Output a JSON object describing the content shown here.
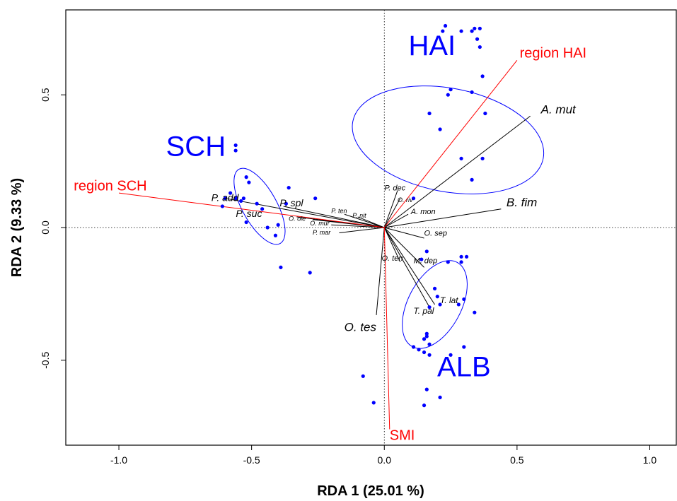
{
  "chart_data": {
    "type": "scatter",
    "title": "",
    "xlabel": "RDA 1 (25.01 %)",
    "ylabel": "RDA 2 (9.33 %)",
    "xlim": [
      -1.2,
      1.1
    ],
    "ylim": [
      -0.82,
      0.82
    ],
    "xticks": [
      -1.0,
      -0.5,
      0.0,
      0.5,
      1.0
    ],
    "xtick_labels": [
      "-1.0",
      "-0.5",
      "0.0",
      "0.5",
      "1.0"
    ],
    "yticks": [
      -0.5,
      0.0,
      0.5
    ],
    "ytick_labels": [
      "-0.5",
      "0.0",
      "0.5"
    ],
    "grid": false,
    "reference_lines": {
      "x": 0,
      "y": 0,
      "style": "dotted"
    },
    "colors": {
      "points": "#0000ff",
      "ellipses": "#0000ff",
      "region_arrows": "#ff0000",
      "species_arrows": "#000000"
    },
    "sites": [
      [
        0.23,
        0.76
      ],
      [
        0.22,
        0.74
      ],
      [
        0.29,
        0.74
      ],
      [
        0.33,
        0.74
      ],
      [
        0.34,
        0.75
      ],
      [
        0.36,
        0.75
      ],
      [
        0.35,
        0.71
      ],
      [
        0.36,
        0.68
      ],
      [
        0.37,
        0.57
      ],
      [
        0.25,
        0.52
      ],
      [
        0.33,
        0.51
      ],
      [
        0.24,
        0.5
      ],
      [
        0.38,
        0.43
      ],
      [
        0.17,
        0.43
      ],
      [
        0.21,
        0.37
      ],
      [
        0.29,
        0.26
      ],
      [
        0.37,
        0.26
      ],
      [
        0.33,
        0.18
      ],
      [
        0.11,
        0.11
      ],
      [
        -0.56,
        0.31
      ],
      [
        -0.56,
        0.29
      ],
      [
        -0.52,
        0.19
      ],
      [
        -0.51,
        0.17
      ],
      [
        -0.36,
        0.15
      ],
      [
        -0.26,
        0.11
      ],
      [
        -0.58,
        0.13
      ],
      [
        -0.56,
        0.11
      ],
      [
        -0.53,
        0.11
      ],
      [
        -0.54,
        0.1
      ],
      [
        -0.6,
        0.11
      ],
      [
        -0.48,
        0.09
      ],
      [
        -0.37,
        0.09
      ],
      [
        -0.61,
        0.08
      ],
      [
        -0.46,
        0.07
      ],
      [
        -0.52,
        0.02
      ],
      [
        -0.44,
        0.0
      ],
      [
        -0.4,
        0.01
      ],
      [
        -0.41,
        -0.03
      ],
      [
        -0.39,
        -0.15
      ],
      [
        -0.28,
        -0.17
      ],
      [
        0.16,
        -0.09
      ],
      [
        0.14,
        -0.12
      ],
      [
        0.24,
        -0.13
      ],
      [
        0.29,
        -0.11
      ],
      [
        0.31,
        -0.11
      ],
      [
        0.29,
        -0.13
      ],
      [
        0.19,
        -0.23
      ],
      [
        0.2,
        -0.26
      ],
      [
        0.3,
        -0.27
      ],
      [
        0.28,
        -0.29
      ],
      [
        0.21,
        -0.29
      ],
      [
        0.17,
        -0.3
      ],
      [
        0.34,
        -0.32
      ],
      [
        0.16,
        -0.4
      ],
      [
        0.16,
        -0.41
      ],
      [
        0.15,
        -0.42
      ],
      [
        0.17,
        -0.44
      ],
      [
        0.3,
        -0.45
      ],
      [
        0.11,
        -0.45
      ],
      [
        0.13,
        -0.46
      ],
      [
        0.15,
        -0.47
      ],
      [
        0.17,
        -0.48
      ],
      [
        0.25,
        -0.48
      ],
      [
        0.16,
        -0.61
      ],
      [
        0.21,
        -0.64
      ],
      [
        0.15,
        -0.67
      ],
      [
        -0.08,
        -0.56
      ],
      [
        -0.04,
        -0.66
      ]
    ],
    "ellipses": [
      {
        "name": "HAI",
        "label": "HAI",
        "center": [
          0.24,
          0.33
        ],
        "rx": 0.195,
        "ry": 0.365,
        "rotation_deg": 79
      },
      {
        "name": "SCH",
        "label": "SCH",
        "center": [
          -0.47,
          0.08
        ],
        "rx": 0.065,
        "ry": 0.16,
        "rotation_deg": 29
      },
      {
        "name": "ALB",
        "label": "ALB",
        "center": [
          0.19,
          -0.29
        ],
        "rx": 0.18,
        "ry": 0.1,
        "rotation_deg": -118
      }
    ],
    "region_arrows": [
      {
        "label": "region HAI",
        "end": [
          0.5,
          0.63
        ]
      },
      {
        "label": "region SCH",
        "end": [
          -1.0,
          0.13
        ]
      },
      {
        "label": "SMI",
        "end": [
          0.02,
          -0.76
        ]
      }
    ],
    "species_arrows": [
      {
        "label": "A. mut",
        "end": [
          0.55,
          0.42
        ],
        "size": 17
      },
      {
        "label": "B. fim",
        "end": [
          0.44,
          0.07
        ],
        "size": 17
      },
      {
        "label": "O. tes",
        "end": [
          -0.03,
          -0.33
        ],
        "size": 17
      },
      {
        "label": "P. add",
        "end": [
          -0.6,
          0.11
        ],
        "size": 14
      },
      {
        "label": "P. spl",
        "end": [
          -0.38,
          0.08
        ],
        "size": 14
      },
      {
        "label": "P. suc",
        "end": [
          -0.33,
          0.04
        ],
        "size": 14
      },
      {
        "label": "P. dec",
        "end": [
          0.05,
          0.14
        ],
        "size": 11
      },
      {
        "label": "O. riv",
        "end": [
          0.06,
          0.11
        ],
        "size": 9
      },
      {
        "label": "A. mon",
        "end": [
          0.09,
          0.05
        ],
        "size": 11
      },
      {
        "label": "O. sep",
        "end": [
          0.15,
          -0.04
        ],
        "size": 11
      },
      {
        "label": "M. dep",
        "end": [
          0.15,
          -0.15
        ],
        "size": 11
      },
      {
        "label": "O. ten",
        "end": [
          0.06,
          -0.13
        ],
        "size": 11
      },
      {
        "label": "T. lat",
        "end": [
          0.19,
          -0.29
        ],
        "size": 12
      },
      {
        "label": "T. pal",
        "end": [
          0.17,
          -0.3
        ],
        "size": 12
      },
      {
        "label": "P. ten",
        "end": [
          -0.15,
          0.05
        ],
        "size": 9
      },
      {
        "label": "P. nit",
        "end": [
          -0.1,
          0.04
        ],
        "size": 9
      },
      {
        "label": "O. ole",
        "end": [
          -0.27,
          0.03
        ],
        "size": 9
      },
      {
        "label": "O. mur",
        "end": [
          -0.2,
          0.01
        ],
        "size": 9
      },
      {
        "label": "P. mar",
        "end": [
          -0.17,
          -0.02
        ],
        "size": 9
      }
    ]
  }
}
